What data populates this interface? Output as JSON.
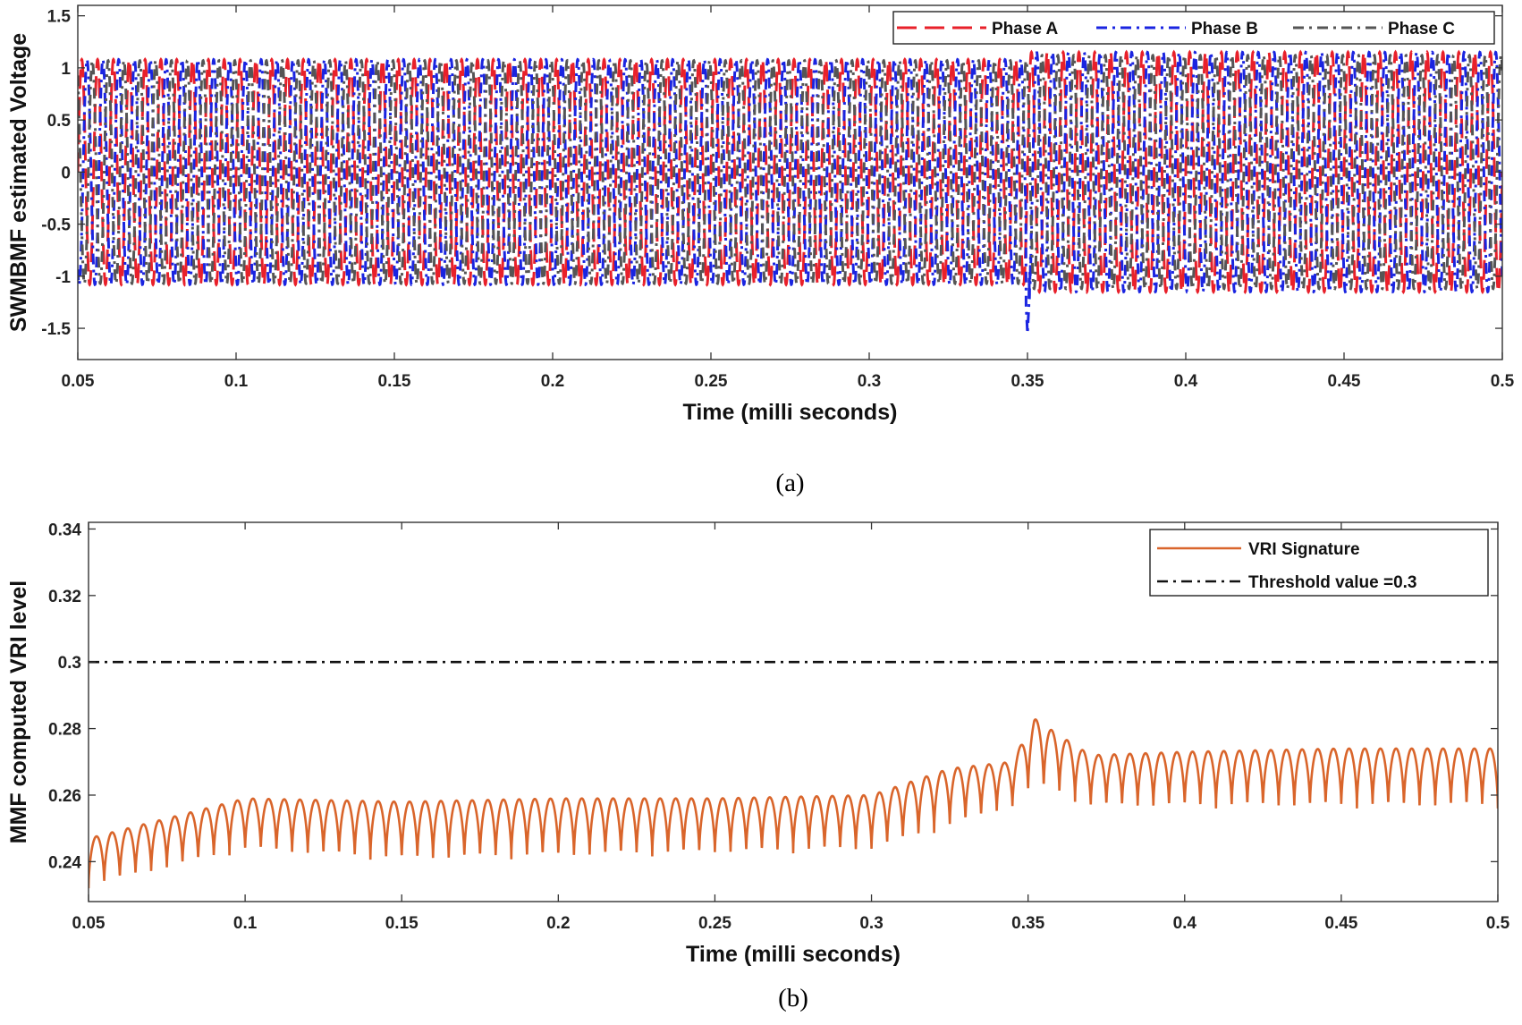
{
  "chart_data": [
    {
      "type": "line",
      "xlabel": "Time (milli seconds)",
      "ylabel": "SWMBMF estimated Voltage",
      "caption": "(a)",
      "xlim": [
        0.05,
        0.5
      ],
      "ylim": [
        -1.8,
        1.6
      ],
      "xticks": [
        0.05,
        0.1,
        0.15,
        0.2,
        0.25,
        0.3,
        0.35,
        0.4,
        0.45,
        0.5
      ],
      "yticks": [
        -1.5,
        -1,
        -0.5,
        0,
        0.5,
        1,
        1.5
      ],
      "xtick_labels": [
        "0.05",
        "0.1",
        "0.15",
        "0.2",
        "0.25",
        "0.3",
        "0.35",
        "0.4",
        "0.45",
        "0.5"
      ],
      "ytick_labels": [
        "-1.5",
        "-1",
        "-0.5",
        "0",
        "0.5",
        "1",
        "1.5"
      ],
      "legend_position": "top-right",
      "cycles_per_ms": 200,
      "disturbance_time": 0.35,
      "series": [
        {
          "name": "Phase A",
          "color": "#e8202a",
          "style": "dashed",
          "amplitude_before": 1.08,
          "amplitude_after": 1.15,
          "phase_deg": 0
        },
        {
          "name": "Phase B",
          "color": "#1a24e0",
          "style": "dashdot",
          "amplitude_before": 1.08,
          "amplitude_after": 1.15,
          "phase_deg": -120,
          "spike_min": -1.55
        },
        {
          "name": "Phase C",
          "color": "#555555",
          "style": "dashdot",
          "amplitude_before": 1.07,
          "amplitude_after": 1.12,
          "phase_deg": 120
        }
      ]
    },
    {
      "type": "line",
      "xlabel": "Time (milli seconds)",
      "ylabel": "MMF computed VRI level",
      "caption": "(b)",
      "xlim": [
        0.05,
        0.5
      ],
      "ylim": [
        0.228,
        0.342
      ],
      "xticks": [
        0.05,
        0.1,
        0.15,
        0.2,
        0.25,
        0.3,
        0.35,
        0.4,
        0.45,
        0.5
      ],
      "yticks": [
        0.24,
        0.26,
        0.28,
        0.3,
        0.32,
        0.34
      ],
      "xtick_labels": [
        "0.05",
        "0.1",
        "0.15",
        "0.2",
        "0.25",
        "0.3",
        "0.35",
        "0.4",
        "0.45",
        "0.5"
      ],
      "ytick_labels": [
        "0.24",
        "0.26",
        "0.28",
        "0.3",
        "0.32",
        "0.34"
      ],
      "legend_position": "top-right",
      "ripple_cycles_per_ms": 200,
      "series": [
        {
          "name": "VRI Signature",
          "color": "#d9652b",
          "style": "solid",
          "envelope_t": [
            0.05,
            0.1,
            0.15,
            0.2,
            0.25,
            0.3,
            0.325,
            0.345,
            0.352,
            0.36,
            0.37,
            0.4,
            0.45,
            0.5
          ],
          "envelope_top": [
            0.247,
            0.259,
            0.258,
            0.259,
            0.259,
            0.26,
            0.268,
            0.27,
            0.283,
            0.278,
            0.272,
            0.273,
            0.274,
            0.274
          ],
          "envelope_bottom": [
            0.232,
            0.243,
            0.24,
            0.241,
            0.242,
            0.243,
            0.25,
            0.256,
            0.262,
            0.26,
            0.256,
            0.256,
            0.256,
            0.256
          ]
        },
        {
          "name": "Threshold value =0.3",
          "color": "#111111",
          "style": "dashdot",
          "value": 0.3
        }
      ]
    }
  ]
}
